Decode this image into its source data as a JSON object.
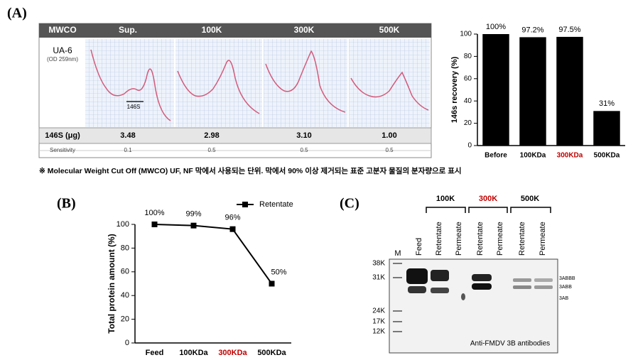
{
  "panel_a": {
    "label": "(A)",
    "table": {
      "header": [
        "MWCO",
        "Sup.",
        "100K",
        "300K",
        "500K"
      ],
      "sample": "UA-6",
      "sample_note": "(OD 259nm)",
      "peak_label": "146S",
      "rows": [
        [
          "146S (μg)",
          "3.48",
          "2.98",
          "3.10",
          "1.00"
        ],
        [
          "Sensitivity",
          "0.1",
          "0.5",
          "0.5",
          "0.5"
        ]
      ]
    },
    "footnote": "※ Molecular Weight Cut Off (MWCO)  UF, NF 막에서 사용되는 단위. 막에서 90% 이상 제거되는 표준 고분자 물질의 분자량으로 표시"
  },
  "panel_b_label": "(B)",
  "chart_data": [
    {
      "type": "bar",
      "ylabel": "146s recovery (%)",
      "categories": [
        "Before",
        "100KDa",
        "300KDa",
        "500KDa"
      ],
      "category_label_colors": [
        "#000000",
        "#000000",
        "#c00000",
        "#000000"
      ],
      "values": [
        100,
        97.2,
        97.5,
        31
      ],
      "value_labels": [
        "100%",
        "97.2%",
        "97.5%",
        "31%"
      ],
      "color": "#000000",
      "ylim": [
        0,
        100
      ],
      "yticks": [
        0,
        20,
        40,
        60,
        80,
        100
      ]
    },
    {
      "type": "line",
      "ylabel": "Total protein amount (%)",
      "categories": [
        "Feed",
        "100KDa",
        "300KDa",
        "500KDa"
      ],
      "category_label_colors": [
        "#000000",
        "#000000",
        "#c00000",
        "#000000"
      ],
      "series": [
        {
          "name": "Retentate",
          "color": "#000000",
          "values": [
            100,
            99,
            96,
            50
          ],
          "value_labels": [
            "100%",
            "99%",
            "96%",
            "50%"
          ]
        }
      ],
      "legend": "top-right",
      "ylim": [
        0,
        100
      ],
      "yticks": [
        0,
        20,
        40,
        60,
        80,
        100
      ]
    }
  ],
  "panel_c": {
    "label": "(C)",
    "groups": [
      "100K",
      "300K",
      "500K"
    ],
    "marker_lane": "M",
    "lanes": [
      "Feed",
      "Retentate",
      "Permeate",
      "Retentate",
      "Permeate",
      "Retentate",
      "Permeate"
    ],
    "size_markers": [
      "38K",
      "31K",
      "24K",
      "17K",
      "12K"
    ],
    "band_labels": [
      "3ABBB",
      "3ABB",
      "3AB"
    ],
    "antibody": "Anti-FMDV 3B antibodies"
  }
}
